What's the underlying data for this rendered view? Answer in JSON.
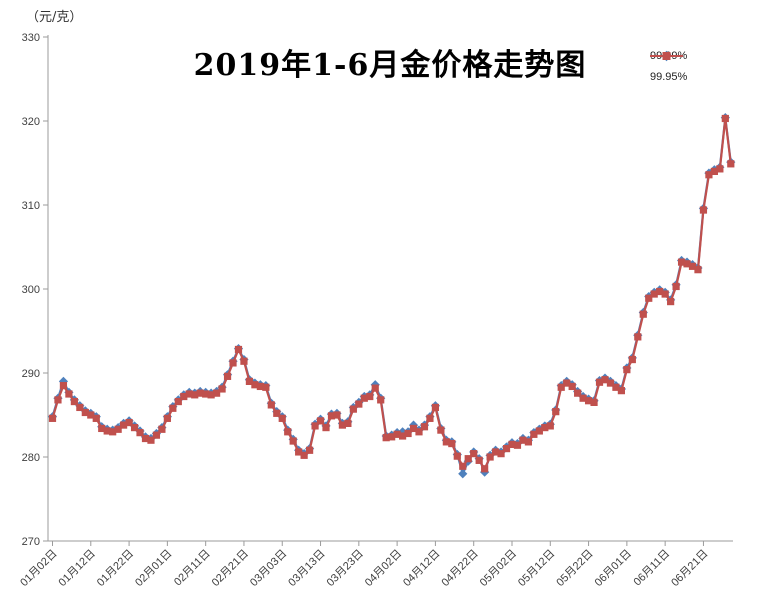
{
  "chart_data": {
    "type": "line",
    "title": "2019年1-6月金价格走势图",
    "y_unit": "（元/克）",
    "ylim": [
      270,
      330
    ],
    "y_ticks": [
      270,
      280,
      290,
      300,
      310,
      320,
      330
    ],
    "x_tick_every": 7,
    "x_tick_labels": [
      "01月02日",
      "01月12日",
      "01月22日",
      "02月01日",
      "02月11日",
      "02月21日",
      "03月03日",
      "03月13日",
      "03月23日",
      "04月02日",
      "04月12日",
      "04月22日",
      "05月02日",
      "05月12日",
      "05月22日",
      "06月01日",
      "06月11日",
      "06月21日"
    ],
    "grid": false,
    "legend_position": "top-right",
    "axis_color": "#9b9b9b",
    "series": [
      {
        "name": "99.99%",
        "color": "#4f81bd",
        "marker": "diamond",
        "values": [
          284.8,
          287.0,
          289.0,
          287.7,
          286.8,
          286.1,
          285.5,
          285.2,
          284.8,
          283.6,
          283.3,
          283.2,
          283.5,
          284.0,
          284.3,
          283.7,
          283.1,
          282.4,
          282.2,
          282.8,
          283.5,
          284.8,
          286.0,
          286.8,
          287.4,
          287.7,
          287.6,
          287.8,
          287.7,
          287.6,
          287.8,
          288.3,
          289.8,
          291.4,
          292.9,
          291.6,
          289.2,
          288.8,
          288.6,
          288.5,
          286.4,
          285.4,
          284.8,
          283.2,
          282.1,
          280.8,
          280.4,
          281.0,
          283.9,
          284.5,
          283.7,
          285.1,
          285.2,
          284.0,
          284.2,
          285.9,
          286.5,
          287.2,
          287.4,
          288.6,
          287.0,
          282.5,
          282.6,
          282.9,
          283.0,
          283.0,
          283.8,
          283.2,
          283.8,
          284.8,
          286.1,
          283.4,
          282.0,
          281.8,
          280.3,
          278.0,
          279.5,
          280.6,
          279.8,
          278.2,
          280.2,
          280.8,
          280.6,
          281.2,
          281.7,
          281.6,
          282.2,
          282.0,
          282.9,
          283.3,
          283.7,
          283.9,
          285.6,
          288.5,
          289.0,
          288.6,
          287.8,
          287.2,
          286.9,
          286.7,
          289.1,
          289.4,
          289.0,
          288.5,
          288.1,
          290.6,
          291.8,
          294.5,
          297.2,
          299.1,
          299.6,
          299.9,
          299.6,
          298.7,
          300.5,
          303.4,
          303.2,
          302.9,
          302.5,
          309.6,
          313.8,
          314.2,
          314.5,
          320.4,
          315.1
        ]
      },
      {
        "name": "99.95%",
        "color": "#c0504d",
        "marker": "square",
        "values": [
          284.6,
          286.8,
          288.5,
          287.5,
          286.6,
          285.9,
          285.3,
          285.0,
          284.6,
          283.4,
          283.1,
          283.0,
          283.3,
          283.8,
          284.1,
          283.5,
          282.9,
          282.2,
          282.0,
          282.6,
          283.3,
          284.6,
          285.8,
          286.6,
          287.2,
          287.5,
          287.4,
          287.6,
          287.5,
          287.4,
          287.6,
          288.1,
          289.6,
          291.2,
          292.8,
          291.4,
          289.0,
          288.6,
          288.4,
          288.3,
          286.2,
          285.2,
          284.6,
          283.0,
          281.9,
          280.6,
          280.2,
          280.8,
          283.7,
          284.3,
          283.5,
          284.9,
          285.0,
          283.8,
          284.0,
          285.7,
          286.3,
          287.0,
          287.2,
          288.2,
          286.8,
          282.3,
          282.4,
          282.7,
          282.5,
          282.8,
          283.4,
          283.0,
          283.6,
          284.6,
          285.9,
          283.2,
          281.8,
          281.6,
          280.1,
          278.9,
          279.8,
          280.4,
          279.6,
          278.6,
          280.0,
          280.6,
          280.4,
          281.0,
          281.5,
          281.4,
          282.0,
          281.8,
          282.7,
          283.1,
          283.5,
          283.7,
          285.4,
          288.3,
          288.8,
          288.4,
          287.6,
          287.0,
          286.7,
          286.5,
          288.9,
          289.2,
          288.8,
          288.3,
          287.9,
          290.4,
          291.6,
          294.3,
          297.0,
          298.9,
          299.4,
          299.7,
          299.4,
          298.5,
          300.3,
          303.2,
          303.0,
          302.7,
          302.3,
          309.4,
          313.6,
          314.0,
          314.3,
          320.3,
          314.9
        ]
      }
    ]
  }
}
